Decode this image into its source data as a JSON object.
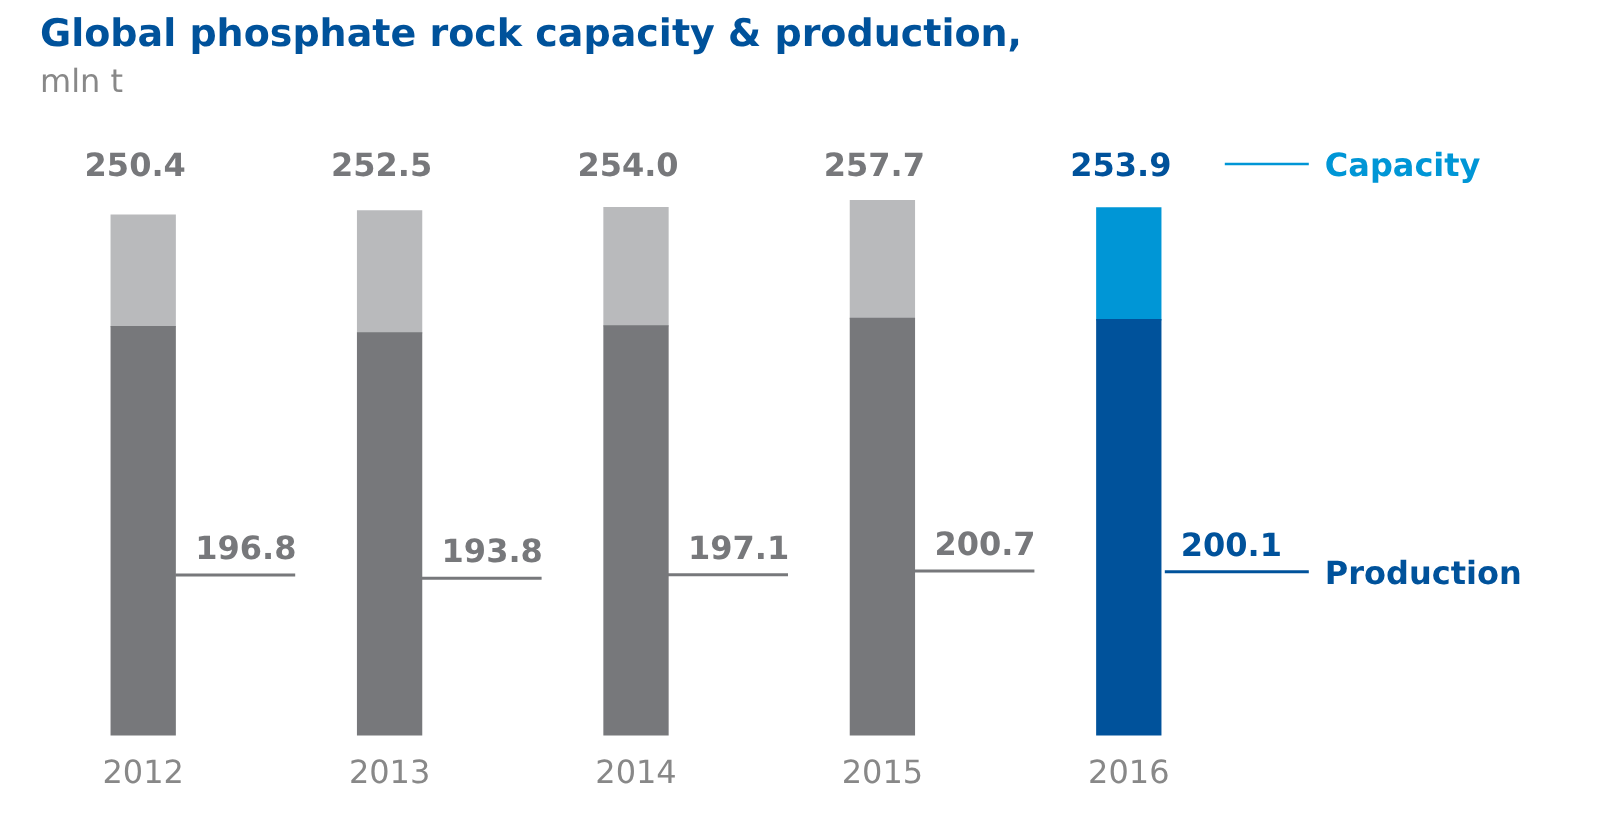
{
  "chart_data": {
    "type": "bar",
    "title": "Global phosphate rock capacity & production,",
    "subtitle": "mln t",
    "categories": [
      "2012",
      "2013",
      "2014",
      "2015",
      "2016"
    ],
    "stacked": true,
    "legend": "right",
    "grid": false,
    "tick_labels": "x",
    "series": [
      {
        "name": "Production",
        "colors": [
          "#77787b",
          "#77787b",
          "#77787b",
          "#77787b",
          "#00529b"
        ],
        "values": [
          196.8,
          193.8,
          197.1,
          200.7,
          200.1
        ],
        "value_labels": [
          "196.8",
          "193.8",
          "197.1",
          "200.7",
          "200.1"
        ]
      },
      {
        "name": "Capacity",
        "colors": [
          "#b9babc",
          "#b9babc",
          "#b9babc",
          "#b9babc",
          "#0096d6"
        ],
        "values": [
          53.6,
          58.7,
          56.9,
          57.0,
          53.8
        ]
      }
    ],
    "totals": [
      "250.4",
      "252.5",
      "254.0",
      "257.7",
      "253.9"
    ]
  }
}
